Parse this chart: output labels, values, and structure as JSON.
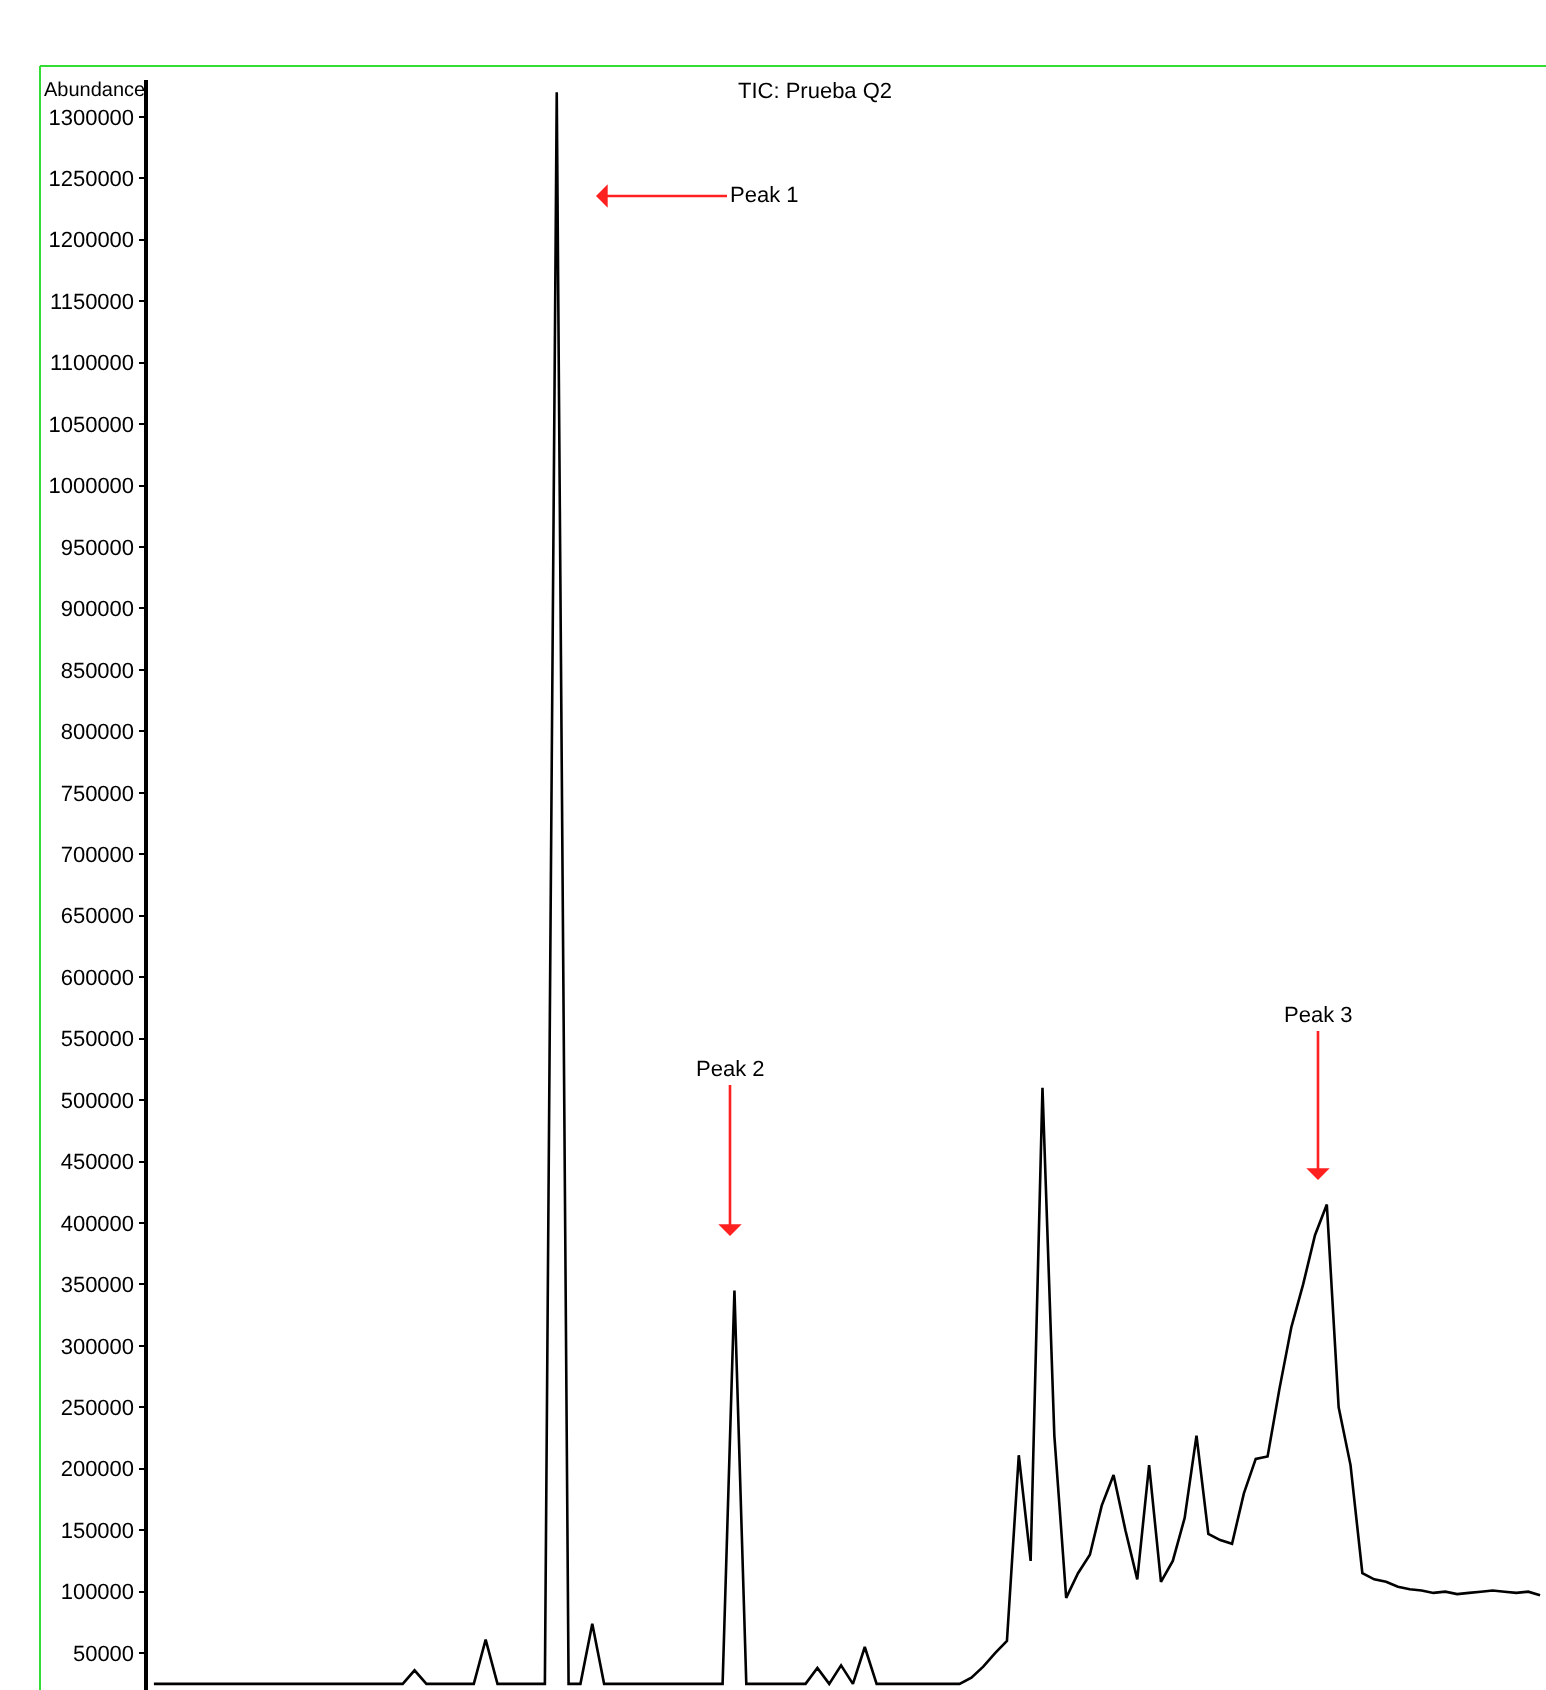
{
  "chart_data": {
    "type": "line",
    "title": "TIC: Prueba Q2",
    "ylabel": "Abundance",
    "categories": [
      null,
      null,
      null,
      null,
      null,
      null,
      null,
      null,
      null,
      null,
      null,
      null,
      null,
      null,
      null,
      null,
      null,
      null,
      null,
      null,
      null,
      null,
      null,
      null,
      null,
      null,
      null,
      null,
      null,
      null,
      null,
      null,
      null,
      null,
      null,
      null,
      null,
      null,
      null,
      null,
      null,
      null,
      null,
      null,
      null,
      null,
      null,
      null,
      null,
      null,
      null,
      null,
      null,
      null,
      null,
      null,
      null,
      null,
      null,
      null,
      null,
      null,
      null,
      null,
      null,
      null,
      null,
      null,
      null,
      null,
      null,
      null,
      null,
      null,
      null,
      null,
      null,
      null,
      null,
      null,
      null,
      null,
      null,
      null,
      null,
      null,
      null,
      null,
      null,
      null,
      null,
      null,
      null,
      null,
      null,
      null,
      null,
      null,
      null,
      null,
      null,
      null,
      null,
      null,
      null,
      null,
      null,
      null,
      null,
      null,
      null,
      null,
      null,
      null,
      null,
      null,
      null,
      null
    ],
    "series": [
      {
        "color": "#000000",
        "values": [
          25000,
          25000,
          25000,
          25000,
          25000,
          25000,
          25000,
          25000,
          25000,
          25000,
          25000,
          25000,
          25000,
          25000,
          25000,
          25000,
          25000,
          25000,
          25000,
          25000,
          25000,
          25000,
          36000,
          25000,
          25000,
          25000,
          25000,
          25000,
          61000,
          25000,
          25000,
          25000,
          25000,
          25000,
          1320000,
          25000,
          25000,
          74000,
          25000,
          25000,
          25000,
          25000,
          25000,
          25000,
          25000,
          25000,
          25000,
          25000,
          25000,
          345000,
          25000,
          25000,
          25000,
          25000,
          25000,
          25000,
          38000,
          25000,
          40000,
          25000,
          55000,
          25000,
          25000,
          25000,
          25000,
          25000,
          25000,
          25000,
          25000,
          30000,
          39000,
          50000,
          60000,
          211000,
          125000,
          510000,
          227000,
          95000,
          115000,
          130000,
          170000,
          195000,
          150000,
          110000,
          203000,
          108000,
          125000,
          160000,
          227000,
          147000,
          142000,
          139000,
          180000,
          208000,
          210000,
          265000,
          315000,
          350000,
          390000,
          415000,
          250000,
          203000,
          115000,
          110000,
          108000,
          104000,
          102000,
          101000,
          99000,
          100000,
          98000,
          99000,
          100000,
          101000,
          100000,
          99000,
          100000,
          97000
        ]
      }
    ],
    "ylim": [
      20000,
      1330000
    ],
    "yticks": [
      50000,
      100000,
      150000,
      200000,
      250000,
      300000,
      350000,
      400000,
      450000,
      500000,
      550000,
      600000,
      650000,
      700000,
      750000,
      800000,
      850000,
      900000,
      950000,
      1000000,
      1050000,
      1100000,
      1150000,
      1200000,
      1250000,
      1300000
    ],
    "tick_labels": "y",
    "legend": false,
    "marker": "none",
    "line_style": "solid",
    "annotations": [
      "Peak 1",
      "Peak 2",
      "Peak 3"
    ]
  }
}
